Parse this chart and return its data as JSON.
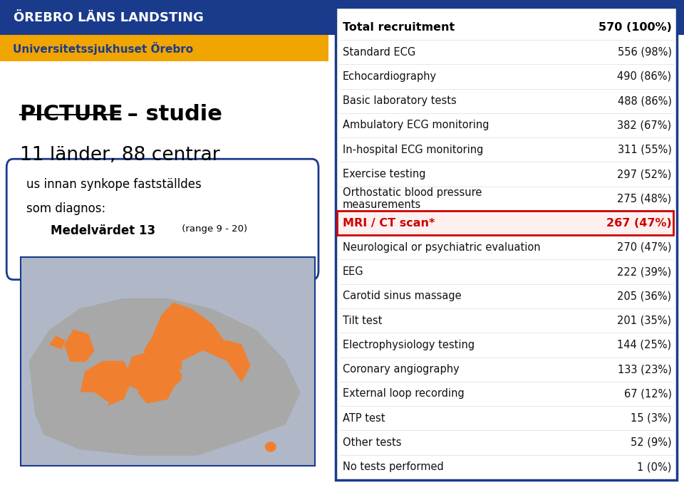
{
  "header_bg_color": "#1a3a8c",
  "header_text": "ÖREBRO LÄNS LANDSTING",
  "subheader_bg_color": "#f0a500",
  "subheader_text": "Universitetssjukhuset Örebro",
  "title_bold": "PICTURE",
  "title_rest": " – studie",
  "subtitle": "11 länder, 88 centrar",
  "box_text_line1": "us innan synkope fastställdes",
  "box_text_line2": "som diagnos:",
  "box_text_line3": "Medelvärdet 13",
  "box_text_line3b": " (range 9 - 20)",
  "right_border_color": "#1a3a8c",
  "table_rows": [
    {
      "label": "Total recruitment",
      "value": "570 (100%)",
      "bold": true,
      "highlight": false
    },
    {
      "label": "Standard ECG",
      "value": "556 (98%)",
      "bold": false,
      "highlight": false
    },
    {
      "label": "Echocardiography",
      "value": "490 (86%)",
      "bold": false,
      "highlight": false
    },
    {
      "label": "Basic laboratory tests",
      "value": "488 (86%)",
      "bold": false,
      "highlight": false
    },
    {
      "label": "Ambulatory ECG monitoring",
      "value": "382 (67%)",
      "bold": false,
      "highlight": false
    },
    {
      "label": "In-hospital ECG monitoring",
      "value": "311 (55%)",
      "bold": false,
      "highlight": false
    },
    {
      "label": "Exercise testing",
      "value": "297 (52%)",
      "bold": false,
      "highlight": false
    },
    {
      "label": "Orthostatic blood pressure\nmeasurements",
      "value": "275 (48%)",
      "bold": false,
      "highlight": false
    },
    {
      "label": "MRI / CT scan*",
      "value": "267 (47%)",
      "bold": true,
      "highlight": true
    },
    {
      "label": "Neurological or psychiatric evaluation",
      "value": "270 (47%)",
      "bold": false,
      "highlight": false
    },
    {
      "label": "EEG",
      "value": "222 (39%)",
      "bold": false,
      "highlight": false
    },
    {
      "label": "Carotid sinus massage",
      "value": "205 (36%)",
      "bold": false,
      "highlight": false
    },
    {
      "label": "Tilt test",
      "value": "201 (35%)",
      "bold": false,
      "highlight": false
    },
    {
      "label": "Electrophysiology testing",
      "value": "144 (25%)",
      "bold": false,
      "highlight": false
    },
    {
      "label": "Coronary angiography",
      "value": "133 (23%)",
      "bold": false,
      "highlight": false
    },
    {
      "label": "External loop recording",
      "value": "67 (12%)",
      "bold": false,
      "highlight": false
    },
    {
      "label": "ATP test",
      "value": "15 (3%)",
      "bold": false,
      "highlight": false
    },
    {
      "label": "Other tests",
      "value": "52 (9%)",
      "bold": false,
      "highlight": false
    },
    {
      "label": "No tests performed",
      "value": "1 (0%)",
      "bold": false,
      "highlight": false
    }
  ],
  "highlight_color": "#cc0000",
  "box_border_color": "#1a3a8c",
  "map_sea_color": "#b0b8c8",
  "map_land_color": "#a8a8a8",
  "map_highlight_color": "#f08030",
  "map_border_color": "#1a3a8c"
}
